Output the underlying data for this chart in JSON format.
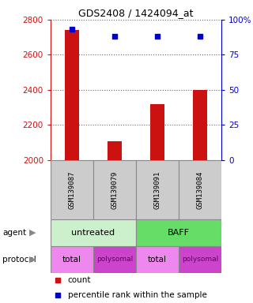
{
  "title": "GDS2408 / 1424094_at",
  "samples": [
    "GSM139087",
    "GSM139079",
    "GSM139091",
    "GSM139084"
  ],
  "counts": [
    2740,
    2110,
    2320,
    2400
  ],
  "percentile_ranks": [
    93,
    88,
    88,
    88
  ],
  "ylim_left": [
    2000,
    2800
  ],
  "ylim_right": [
    0,
    100
  ],
  "yticks_left": [
    2000,
    2200,
    2400,
    2600,
    2800
  ],
  "yticks_right": [
    0,
    25,
    50,
    75,
    100
  ],
  "ytick_labels_right": [
    "0",
    "25",
    "50",
    "75",
    "100%"
  ],
  "agent_spans": [
    [
      0,
      2,
      "untreated",
      "#ccf0cc"
    ],
    [
      2,
      4,
      "BAFF",
      "#66dd66"
    ]
  ],
  "protocol_labels": [
    "total",
    "polysomal",
    "total",
    "polysomal"
  ],
  "protocol_colors": [
    "#ee88ee",
    "#cc44cc",
    "#ee88ee",
    "#cc44cc"
  ],
  "bar_color": "#cc1111",
  "dot_color": "#0000cc",
  "sample_box_color": "#cccccc",
  "sample_box_edge": "#888888",
  "left_tick_color": "#cc1111",
  "right_tick_color": "#0000cc",
  "legend_count_color": "#cc1111",
  "legend_pct_color": "#0000cc",
  "n": 4
}
